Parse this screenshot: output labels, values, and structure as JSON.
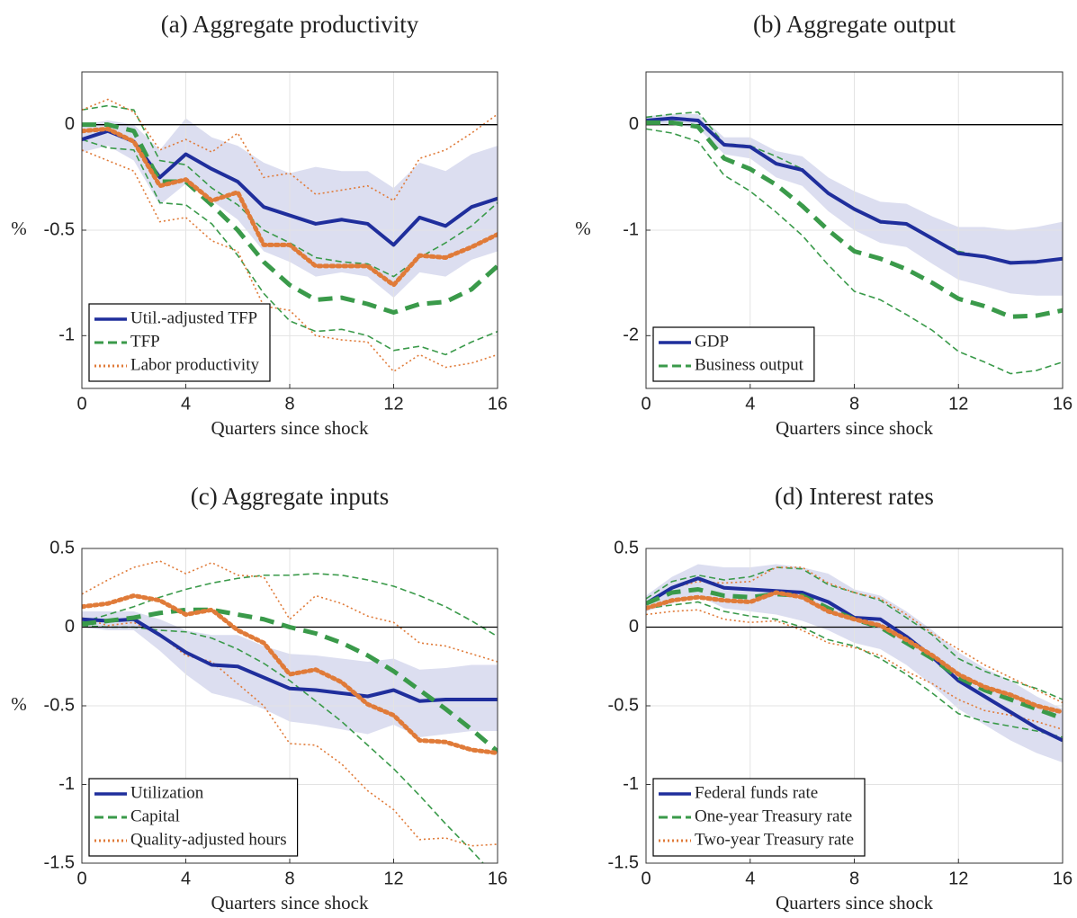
{
  "chart_data": [
    {
      "type": "line",
      "title": "(a) Aggregate productivity",
      "xlabel": "Quarters since shock",
      "ylabel": "%",
      "x": [
        0,
        1,
        2,
        3,
        4,
        5,
        6,
        7,
        8,
        9,
        10,
        11,
        12,
        13,
        14,
        15,
        16
      ],
      "xlim": [
        0,
        16
      ],
      "xticks": [
        0,
        4,
        8,
        12,
        16
      ],
      "ylim": [
        -1.25,
        0.25
      ],
      "yticks": [
        -1,
        -0.5,
        0
      ],
      "grid": true,
      "hline": 0,
      "legend": "lower left",
      "band": {
        "color": "#dcdef0",
        "upper": [
          0.0,
          0.02,
          0.0,
          -0.12,
          0.03,
          -0.06,
          -0.1,
          -0.18,
          -0.23,
          -0.2,
          -0.22,
          -0.22,
          -0.3,
          -0.18,
          -0.22,
          -0.14,
          -0.1
        ],
        "lower": [
          -0.13,
          -0.1,
          -0.17,
          -0.38,
          -0.28,
          -0.36,
          -0.45,
          -0.6,
          -0.65,
          -0.72,
          -0.7,
          -0.72,
          -0.82,
          -0.7,
          -0.72,
          -0.64,
          -0.6
        ]
      },
      "series": [
        {
          "name": "Util.-adjusted TFP",
          "color": "#1f2e9c",
          "style": "solid",
          "values": [
            -0.07,
            -0.03,
            -0.08,
            -0.25,
            -0.14,
            -0.21,
            -0.27,
            -0.39,
            -0.43,
            -0.47,
            -0.45,
            -0.47,
            -0.57,
            -0.44,
            -0.48,
            -0.39,
            -0.35
          ]
        },
        {
          "name": "TFP",
          "color": "#3a9a4a",
          "style": "dashed",
          "values": [
            0.0,
            0.0,
            -0.03,
            -0.27,
            -0.27,
            -0.38,
            -0.5,
            -0.65,
            -0.76,
            -0.83,
            -0.82,
            -0.85,
            -0.89,
            -0.85,
            -0.84,
            -0.78,
            -0.67
          ],
          "upper": [
            0.07,
            0.09,
            0.07,
            -0.17,
            -0.19,
            -0.3,
            -0.38,
            -0.5,
            -0.56,
            -0.63,
            -0.65,
            -0.66,
            -0.72,
            -0.63,
            -0.56,
            -0.48,
            -0.37
          ],
          "lower": [
            -0.07,
            -0.11,
            -0.12,
            -0.37,
            -0.38,
            -0.47,
            -0.62,
            -0.8,
            -0.93,
            -0.98,
            -0.97,
            -1.0,
            -1.07,
            -1.05,
            -1.09,
            -1.03,
            -0.98
          ]
        },
        {
          "name": "Labor productivity",
          "color": "#e07b39",
          "style": "dotted",
          "values": [
            -0.03,
            -0.02,
            -0.08,
            -0.29,
            -0.26,
            -0.36,
            -0.32,
            -0.57,
            -0.57,
            -0.67,
            -0.67,
            -0.67,
            -0.76,
            -0.62,
            -0.63,
            -0.58,
            -0.52
          ],
          "upper": [
            0.07,
            0.12,
            0.06,
            -0.12,
            -0.07,
            -0.13,
            -0.04,
            -0.25,
            -0.23,
            -0.33,
            -0.31,
            -0.29,
            -0.36,
            -0.16,
            -0.12,
            -0.04,
            0.05
          ],
          "lower": [
            -0.12,
            -0.17,
            -0.22,
            -0.46,
            -0.44,
            -0.55,
            -0.6,
            -0.86,
            -0.88,
            -1.0,
            -1.02,
            -1.03,
            -1.17,
            -1.09,
            -1.15,
            -1.13,
            -1.09
          ]
        }
      ]
    },
    {
      "type": "line",
      "title": "(b) Aggregate output",
      "xlabel": "Quarters since shock",
      "ylabel": "%",
      "x": [
        0,
        1,
        2,
        3,
        4,
        5,
        6,
        7,
        8,
        9,
        10,
        11,
        12,
        13,
        14,
        15,
        16
      ],
      "xlim": [
        0,
        16
      ],
      "xticks": [
        0,
        4,
        8,
        12,
        16
      ],
      "ylim": [
        -2.5,
        0.5
      ],
      "yticks": [
        -2,
        -1,
        0
      ],
      "grid": true,
      "hline": 0,
      "legend": "lower left",
      "band": {
        "color": "#dcdef0",
        "upper": [
          0.08,
          0.1,
          0.1,
          -0.12,
          -0.12,
          -0.25,
          -0.3,
          -0.5,
          -0.63,
          -0.73,
          -0.75,
          -0.87,
          -0.97,
          -0.97,
          -1.0,
          -0.97,
          -0.92
        ],
        "lower": [
          0.0,
          0.0,
          -0.03,
          -0.28,
          -0.32,
          -0.5,
          -0.58,
          -0.82,
          -1.0,
          -1.12,
          -1.16,
          -1.32,
          -1.47,
          -1.53,
          -1.6,
          -1.62,
          -1.62
        ]
      },
      "series": [
        {
          "name": "GDP",
          "color": "#1f2e9c",
          "style": "solid",
          "values": [
            0.04,
            0.06,
            0.04,
            -0.19,
            -0.21,
            -0.37,
            -0.43,
            -0.65,
            -0.8,
            -0.92,
            -0.94,
            -1.08,
            -1.22,
            -1.25,
            -1.31,
            -1.3,
            -1.27
          ]
        },
        {
          "name": "Business output",
          "color": "#3a9a4a",
          "style": "dashed",
          "values": [
            0.02,
            0.02,
            -0.02,
            -0.32,
            -0.42,
            -0.57,
            -0.77,
            -1.0,
            -1.2,
            -1.27,
            -1.37,
            -1.5,
            -1.65,
            -1.72,
            -1.82,
            -1.81,
            -1.76
          ],
          "upper": [
            0.07,
            0.1,
            0.12,
            -0.18,
            -0.2,
            -0.3,
            -0.42,
            -0.65,
            -0.8,
            -0.93,
            -0.95,
            -1.08,
            -1.2,
            -1.25,
            -1.3,
            -1.3,
            -1.27
          ],
          "lower": [
            -0.04,
            -0.08,
            -0.16,
            -0.48,
            -0.63,
            -0.83,
            -1.05,
            -1.33,
            -1.58,
            -1.66,
            -1.8,
            -1.95,
            -2.15,
            -2.25,
            -2.36,
            -2.33,
            -2.25
          ]
        }
      ]
    },
    {
      "type": "line",
      "title": "(c) Aggregate inputs",
      "xlabel": "Quarters since shock",
      "ylabel": "%",
      "x": [
        0,
        1,
        2,
        3,
        4,
        5,
        6,
        7,
        8,
        9,
        10,
        11,
        12,
        13,
        14,
        15,
        16
      ],
      "xlim": [
        0,
        16
      ],
      "xticks": [
        0,
        4,
        8,
        12,
        16
      ],
      "ylim": [
        -1.5,
        0.5
      ],
      "yticks": [
        -1.5,
        -1,
        -0.5,
        0,
        0.5
      ],
      "grid": true,
      "hline": 0,
      "legend": "lower left",
      "band": {
        "color": "#dcdef0",
        "upper": [
          0.1,
          0.1,
          0.1,
          0.05,
          -0.02,
          -0.05,
          -0.05,
          -0.12,
          -0.17,
          -0.18,
          -0.2,
          -0.22,
          -0.2,
          -0.27,
          -0.26,
          -0.24,
          -0.24
        ],
        "lower": [
          0.0,
          -0.02,
          -0.02,
          -0.15,
          -0.3,
          -0.42,
          -0.46,
          -0.52,
          -0.6,
          -0.62,
          -0.65,
          -0.68,
          -0.62,
          -0.7,
          -0.68,
          -0.66,
          -0.66
        ]
      },
      "series": [
        {
          "name": "Utilization",
          "color": "#1f2e9c",
          "style": "solid",
          "values": [
            0.05,
            0.04,
            0.05,
            -0.05,
            -0.16,
            -0.24,
            -0.25,
            -0.32,
            -0.39,
            -0.4,
            -0.42,
            -0.44,
            -0.4,
            -0.47,
            -0.46,
            -0.46,
            -0.46
          ]
        },
        {
          "name": "Capital",
          "color": "#3a9a4a",
          "style": "dashed",
          "values": [
            0.02,
            0.04,
            0.06,
            0.09,
            0.11,
            0.11,
            0.08,
            0.05,
            0.0,
            -0.04,
            -0.1,
            -0.18,
            -0.28,
            -0.4,
            -0.52,
            -0.65,
            -0.79
          ],
          "upper": [
            0.03,
            0.08,
            0.13,
            0.19,
            0.24,
            0.28,
            0.31,
            0.33,
            0.33,
            0.34,
            0.33,
            0.3,
            0.26,
            0.2,
            0.13,
            0.04,
            -0.06
          ],
          "lower": [
            0.01,
            0.0,
            0.0,
            -0.02,
            -0.03,
            -0.07,
            -0.14,
            -0.23,
            -0.34,
            -0.47,
            -0.6,
            -0.75,
            -0.9,
            -1.07,
            -1.25,
            -1.42,
            -1.6
          ]
        },
        {
          "name": "Quality-adjusted hours",
          "color": "#e07b39",
          "style": "dotted",
          "values": [
            0.13,
            0.15,
            0.2,
            0.17,
            0.08,
            0.11,
            -0.02,
            -0.1,
            -0.3,
            -0.27,
            -0.35,
            -0.49,
            -0.56,
            -0.72,
            -0.73,
            -0.78,
            -0.8
          ],
          "upper": [
            0.21,
            0.3,
            0.38,
            0.42,
            0.34,
            0.41,
            0.33,
            0.32,
            0.05,
            0.2,
            0.15,
            0.07,
            0.03,
            -0.1,
            -0.12,
            -0.17,
            -0.22
          ],
          "lower": [
            0.06,
            0.01,
            0.03,
            -0.05,
            -0.18,
            -0.22,
            -0.36,
            -0.5,
            -0.74,
            -0.75,
            -0.87,
            -1.04,
            -1.16,
            -1.35,
            -1.34,
            -1.39,
            -1.38
          ]
        }
      ]
    },
    {
      "type": "line",
      "title": "(d) Interest rates",
      "xlabel": "Quarters since shock",
      "x": [
        0,
        1,
        2,
        3,
        4,
        5,
        6,
        7,
        8,
        9,
        10,
        11,
        12,
        13,
        14,
        15,
        16
      ],
      "xlim": [
        0,
        16
      ],
      "xticks": [
        0,
        4,
        8,
        12,
        16
      ],
      "ylim": [
        -1.5,
        0.5
      ],
      "yticks": [
        -1.5,
        -1,
        -0.5,
        0,
        0.5
      ],
      "grid": true,
      "hline": 0,
      "legend": "lower left",
      "band": {
        "color": "#dcdef0",
        "upper": [
          0.2,
          0.32,
          0.4,
          0.38,
          0.38,
          0.4,
          0.38,
          0.34,
          0.24,
          0.2,
          0.1,
          -0.02,
          -0.16,
          -0.26,
          -0.34,
          -0.44,
          -0.52
        ],
        "lower": [
          0.1,
          0.15,
          0.2,
          0.12,
          0.1,
          0.08,
          0.04,
          -0.02,
          -0.1,
          -0.14,
          -0.24,
          -0.37,
          -0.52,
          -0.62,
          -0.72,
          -0.8,
          -0.86
        ]
      },
      "series": [
        {
          "name": "Federal funds rate",
          "color": "#1f2e9c",
          "style": "solid",
          "values": [
            0.15,
            0.25,
            0.31,
            0.25,
            0.24,
            0.23,
            0.22,
            0.16,
            0.06,
            0.05,
            -0.06,
            -0.19,
            -0.34,
            -0.44,
            -0.54,
            -0.64,
            -0.72
          ]
        },
        {
          "name": "One-year Treasury rate",
          "color": "#3a9a4a",
          "style": "dashed",
          "values": [
            0.15,
            0.22,
            0.24,
            0.2,
            0.19,
            0.21,
            0.2,
            0.12,
            0.05,
            0.0,
            -0.1,
            -0.2,
            -0.32,
            -0.4,
            -0.46,
            -0.52,
            -0.58
          ],
          "upper": [
            0.18,
            0.29,
            0.33,
            0.3,
            0.32,
            0.38,
            0.37,
            0.27,
            0.22,
            0.17,
            0.06,
            -0.05,
            -0.2,
            -0.28,
            -0.34,
            -0.39,
            -0.46
          ],
          "lower": [
            0.12,
            0.14,
            0.16,
            0.1,
            0.07,
            0.05,
            0.0,
            -0.08,
            -0.12,
            -0.2,
            -0.3,
            -0.42,
            -0.55,
            -0.6,
            -0.63,
            -0.66,
            -0.7
          ]
        },
        {
          "name": "Two-year Treasury rate",
          "color": "#e07b39",
          "style": "dotted",
          "values": [
            0.12,
            0.17,
            0.19,
            0.17,
            0.16,
            0.22,
            0.19,
            0.1,
            0.05,
            0.01,
            -0.08,
            -0.18,
            -0.3,
            -0.38,
            -0.43,
            -0.5,
            -0.54
          ],
          "upper": [
            0.15,
            0.25,
            0.29,
            0.28,
            0.29,
            0.38,
            0.38,
            0.28,
            0.22,
            0.18,
            0.08,
            -0.04,
            -0.14,
            -0.24,
            -0.32,
            -0.4,
            -0.48
          ],
          "lower": [
            0.08,
            0.1,
            0.11,
            0.05,
            0.03,
            0.04,
            -0.02,
            -0.1,
            -0.13,
            -0.18,
            -0.28,
            -0.36,
            -0.46,
            -0.53,
            -0.56,
            -0.6,
            -0.65
          ]
        }
      ]
    }
  ]
}
